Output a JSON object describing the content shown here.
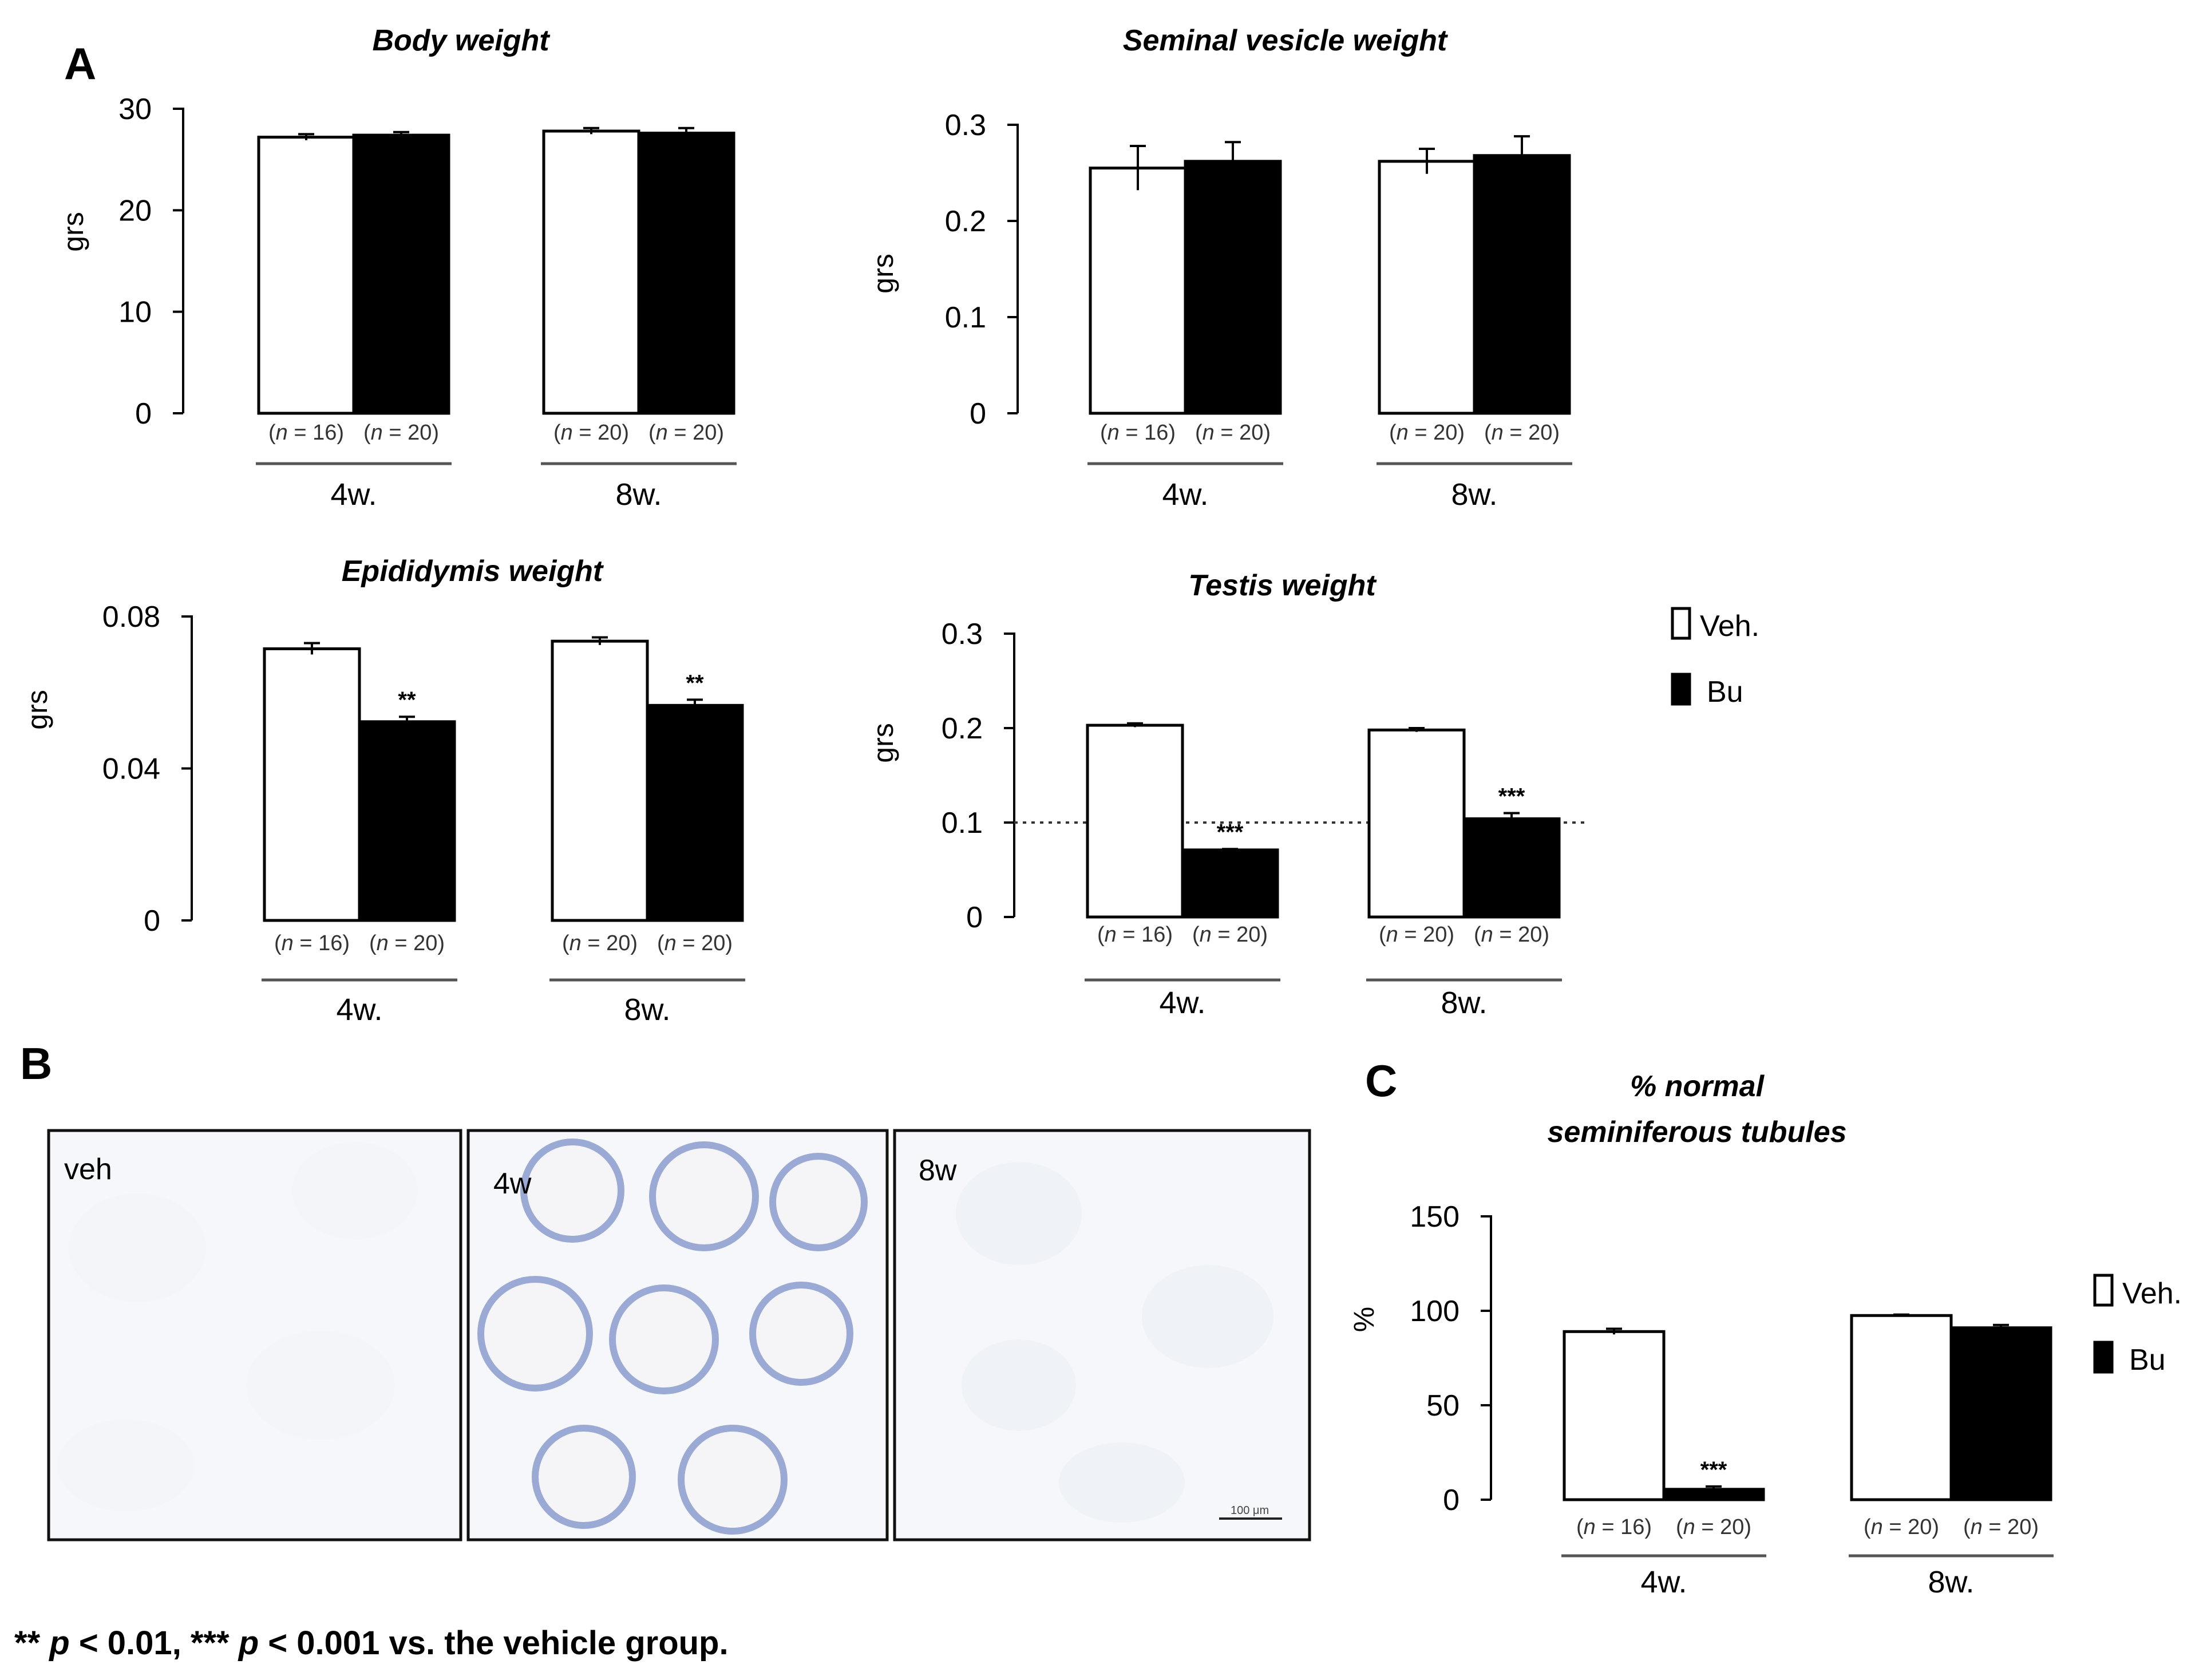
{
  "panel_letters": {
    "a": "A",
    "b": "B",
    "c": "C"
  },
  "colors": {
    "vehicle": "#ffffff",
    "busulfan": "#000000",
    "tissue_stain": "#8aa0d0"
  },
  "legend": {
    "veh": "Veh.",
    "bu": "Bu"
  },
  "n_open": "(",
  "n_close": ")",
  "n_italic": "n",
  "n_eq": " = ",
  "chart_data": [
    {
      "id": "body",
      "type": "bar",
      "title": "Body weight",
      "ylabel": "grs",
      "ylim": [
        0,
        30
      ],
      "ticks": [
        0,
        10,
        20,
        30
      ],
      "tick_labels": [
        "0",
        "10",
        "20",
        "30"
      ],
      "groups": [
        "4w.",
        "8w."
      ],
      "series": [
        {
          "name": "Veh.",
          "values": [
            27.2,
            27.8
          ],
          "errors": [
            0.3,
            0.3
          ]
        },
        {
          "name": "Bu",
          "values": [
            27.4,
            27.6
          ],
          "errors": [
            0.3,
            0.5
          ]
        }
      ],
      "n": [
        [
          "16",
          "20"
        ],
        [
          "20",
          "20"
        ]
      ],
      "significance": [
        [
          "",
          ""
        ],
        [
          "",
          ""
        ]
      ]
    },
    {
      "id": "seminal",
      "type": "bar",
      "title": "Seminal vesicle weight",
      "ylabel": "grs",
      "ylim": [
        0,
        0.3
      ],
      "ticks": [
        0,
        0.1,
        0.2,
        0.3
      ],
      "tick_labels": [
        "0",
        "0.1",
        "0.2",
        "0.3"
      ],
      "groups": [
        "4w.",
        "8w."
      ],
      "series": [
        {
          "name": "Veh.",
          "values": [
            0.255,
            0.262
          ],
          "errors": [
            0.023,
            0.013
          ]
        },
        {
          "name": "Bu",
          "values": [
            0.262,
            0.268
          ],
          "errors": [
            0.02,
            0.02
          ]
        }
      ],
      "n": [
        [
          "16",
          "20"
        ],
        [
          "20",
          "20"
        ]
      ],
      "significance": [
        [
          "",
          ""
        ],
        [
          "",
          ""
        ]
      ]
    },
    {
      "id": "epididymis",
      "type": "bar",
      "title": "Epididymis weight",
      "ylabel": "grs",
      "ylim": [
        0,
        0.08
      ],
      "ticks": [
        0,
        0.04,
        0.08
      ],
      "tick_labels": [
        "0",
        "0.04",
        "0.08"
      ],
      "groups": [
        "4w.",
        "8w."
      ],
      "series": [
        {
          "name": "Veh.",
          "values": [
            0.0715,
            0.0735
          ],
          "errors": [
            0.0015,
            0.001
          ]
        },
        {
          "name": "Bu",
          "values": [
            0.0523,
            0.0566
          ],
          "errors": [
            0.0013,
            0.0015
          ]
        }
      ],
      "n": [
        [
          "16",
          "20"
        ],
        [
          "20",
          "20"
        ]
      ],
      "significance": [
        [
          "",
          "**"
        ],
        [
          "",
          "**"
        ]
      ]
    },
    {
      "id": "testis",
      "type": "bar",
      "title": "Testis weight",
      "ylabel": "grs",
      "ylim": [
        0,
        0.3
      ],
      "ticks": [
        0,
        0.1,
        0.2,
        0.3
      ],
      "tick_labels": [
        "0",
        "0.1",
        "0.2",
        "0.3"
      ],
      "groups": [
        "4w.",
        "8w."
      ],
      "series": [
        {
          "name": "Veh.",
          "values": [
            0.203,
            0.198
          ],
          "errors": [
            0.002,
            0.002
          ]
        },
        {
          "name": "Bu",
          "values": [
            0.071,
            0.104
          ],
          "errors": [
            0.001,
            0.006
          ]
        }
      ],
      "reference_line": 0.1,
      "n": [
        [
          "16",
          "20"
        ],
        [
          "20",
          "20"
        ]
      ],
      "significance": [
        [
          "",
          "***"
        ],
        [
          "",
          "***"
        ]
      ]
    },
    {
      "id": "tubules",
      "type": "bar",
      "title_line1": "% normal",
      "title_line2": "seminiferous tubules",
      "ylabel": "%",
      "ylim": [
        0,
        150
      ],
      "ticks": [
        0,
        50,
        100,
        150
      ],
      "tick_labels": [
        "0",
        "50",
        "100",
        "150"
      ],
      "groups": [
        "4w.",
        "8w."
      ],
      "series": [
        {
          "name": "Veh.",
          "values": [
            89,
            97.5
          ],
          "errors": [
            1.5,
            0.5
          ]
        },
        {
          "name": "Bu",
          "values": [
            5.5,
            91
          ],
          "errors": [
            1.5,
            1.5
          ]
        }
      ],
      "n": [
        [
          "16",
          "20"
        ],
        [
          "20",
          "20"
        ]
      ],
      "significance": [
        [
          "",
          "***"
        ],
        [
          "",
          ""
        ]
      ]
    }
  ],
  "micrographs": [
    {
      "label": "veh"
    },
    {
      "label": "4w"
    },
    {
      "label": "8w",
      "scale_text": "100 μm"
    }
  ],
  "footnote": {
    "p1": "** ",
    "p2": "p",
    "p3": " < 0.01, *** ",
    "p4": "p",
    "p5": " < 0.001 vs. the vehicle group."
  }
}
